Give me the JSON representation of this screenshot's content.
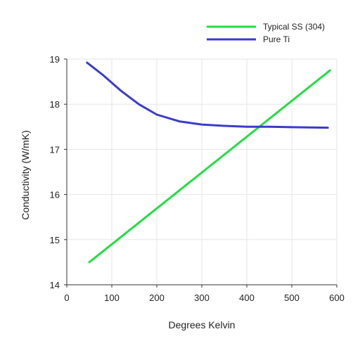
{
  "chart_data": {
    "type": "line",
    "title": "",
    "xlabel": "Degrees Kelvin",
    "ylabel": "Conductivity (W/mK)",
    "xlim": [
      0,
      600
    ],
    "ylim": [
      14,
      19
    ],
    "x_ticks": [
      0,
      100,
      200,
      300,
      400,
      500,
      600
    ],
    "y_ticks": [
      14,
      15,
      16,
      17,
      18,
      19
    ],
    "grid": true,
    "legend_position": "top-right",
    "series": [
      {
        "name": "Typical SS (304)",
        "color": "#22dd44",
        "points": [
          [
            50,
            14.5
          ],
          [
            585,
            18.75
          ]
        ]
      },
      {
        "name": "Pure Ti",
        "color": "#3b3bcc",
        "points": [
          [
            45,
            18.92
          ],
          [
            80,
            18.65
          ],
          [
            120,
            18.3
          ],
          [
            160,
            18.0
          ],
          [
            200,
            17.77
          ],
          [
            250,
            17.62
          ],
          [
            300,
            17.55
          ],
          [
            350,
            17.52
          ],
          [
            400,
            17.5
          ],
          [
            450,
            17.5
          ],
          [
            500,
            17.49
          ],
          [
            580,
            17.48
          ]
        ]
      }
    ]
  }
}
